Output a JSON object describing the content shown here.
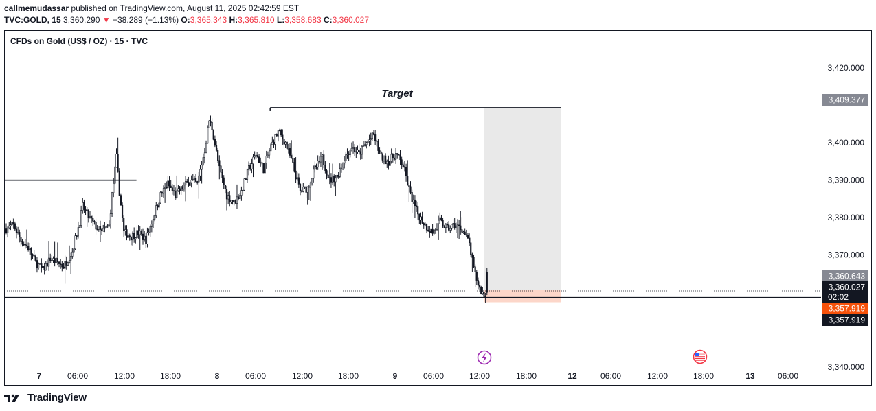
{
  "header": {
    "author": "callmemudassar",
    "published_text": "published on TradingView.com, August 11, 2025 02:42:59 EST",
    "symbol": "TVC:GOLD, 15",
    "last_price": "3,360.290",
    "change_arrow": "▼",
    "change": "−38.289 (−1.13%)",
    "open_label": "O:",
    "open": "3,365.343",
    "high_label": "H:",
    "high": "3,365.810",
    "low_label": "L:",
    "low": "3,358.683",
    "close_label": "C:",
    "close": "3,360.027"
  },
  "legend": {
    "title": "CFDs on Gold (US$ / OZ) · 15 · TVC"
  },
  "footer": {
    "brand": "TradingView"
  },
  "colors": {
    "candle": "#131722",
    "target_box": "#e9e9e9",
    "stop_box": "#fcd6c9",
    "price_tag_gray": "#868993",
    "price_tag_dark": "#131722",
    "price_tag_orange": "#f7520b",
    "event_icon": "#9c27b0"
  },
  "chart_data": {
    "type": "candlestick",
    "title": "CFDs on Gold (US$ / OZ) · 15 · TVC",
    "y_axis": {
      "min": 3336,
      "max": 3427,
      "ticks": [
        "3,420.000",
        "3,400.000",
        "3,390.000",
        "3,380.000",
        "3,370.000",
        "3,340.000"
      ],
      "tick_values": [
        3420,
        3400,
        3390,
        3380,
        3370,
        3340
      ]
    },
    "x_axis": {
      "ticks": [
        "7",
        "06:00",
        "12:00",
        "18:00",
        "8",
        "06:00",
        "12:00",
        "18:00",
        "9",
        "06:00",
        "12:00",
        "18:00",
        "12",
        "06:00",
        "12:00",
        "18:00",
        "13",
        "06:00"
      ],
      "bold_ticks": [
        "7",
        "8",
        "9",
        "12",
        "13"
      ]
    },
    "price_path": [
      [
        0,
        3377
      ],
      [
        5,
        3378
      ],
      [
        10,
        3374
      ],
      [
        15,
        3372
      ],
      [
        20,
        3368
      ],
      [
        25,
        3366
      ],
      [
        30,
        3369
      ],
      [
        35,
        3368
      ],
      [
        39,
        3367
      ],
      [
        45,
        3371
      ],
      [
        50,
        3379
      ],
      [
        52,
        3383
      ],
      [
        55,
        3381
      ],
      [
        60,
        3378
      ],
      [
        65,
        3376
      ],
      [
        70,
        3378
      ],
      [
        72,
        3386
      ],
      [
        75,
        3396
      ],
      [
        77,
        3387
      ],
      [
        80,
        3376
      ],
      [
        85,
        3375
      ],
      [
        90,
        3376
      ],
      [
        95,
        3374
      ],
      [
        100,
        3380
      ],
      [
        105,
        3386
      ],
      [
        110,
        3389
      ],
      [
        115,
        3386
      ],
      [
        120,
        3388
      ],
      [
        125,
        3390
      ],
      [
        130,
        3389
      ],
      [
        135,
        3398
      ],
      [
        138,
        3406
      ],
      [
        140,
        3404
      ],
      [
        145,
        3393
      ],
      [
        150,
        3386
      ],
      [
        155,
        3384
      ],
      [
        160,
        3387
      ],
      [
        165,
        3393
      ],
      [
        170,
        3397
      ],
      [
        175,
        3393
      ],
      [
        180,
        3399
      ],
      [
        185,
        3403
      ],
      [
        190,
        3400
      ],
      [
        195,
        3394
      ],
      [
        200,
        3387
      ],
      [
        205,
        3388
      ],
      [
        210,
        3393
      ],
      [
        215,
        3396
      ],
      [
        220,
        3390
      ],
      [
        225,
        3391
      ],
      [
        230,
        3396
      ],
      [
        235,
        3399
      ],
      [
        240,
        3397
      ],
      [
        245,
        3400
      ],
      [
        250,
        3402
      ],
      [
        255,
        3396
      ],
      [
        260,
        3395
      ],
      [
        265,
        3397
      ],
      [
        270,
        3394
      ],
      [
        275,
        3386
      ],
      [
        280,
        3381
      ],
      [
        285,
        3378
      ],
      [
        290,
        3376
      ],
      [
        295,
        3379
      ],
      [
        300,
        3377
      ],
      [
        305,
        3378
      ],
      [
        310,
        3377
      ],
      [
        315,
        3373
      ],
      [
        318,
        3366
      ],
      [
        322,
        3361
      ],
      [
        326,
        3358.7
      ],
      [
        327,
        3360.0
      ]
    ],
    "horizontal_lines": [
      {
        "price": 3390,
        "from_bar": 0,
        "to_bar": 90
      },
      {
        "price": 3358.6,
        "from_bar": 0,
        "to_bar": null
      },
      {
        "price": 3409.4,
        "from_bar": 180,
        "to_bar": 439,
        "label": "Target"
      }
    ],
    "position_tool": {
      "entry": 3360.643,
      "target": 3409.377,
      "stop": 3357.919
    },
    "price_tags": [
      {
        "value": "3,409.377",
        "style": "gray"
      },
      {
        "value": "3,360.643",
        "style": "gray"
      },
      {
        "value": "3,360.027",
        "sub": "02:02",
        "style": "dark"
      },
      {
        "value": "3,357.919",
        "style": "orange"
      },
      {
        "value": "3,357.919",
        "style": "dark"
      }
    ]
  }
}
